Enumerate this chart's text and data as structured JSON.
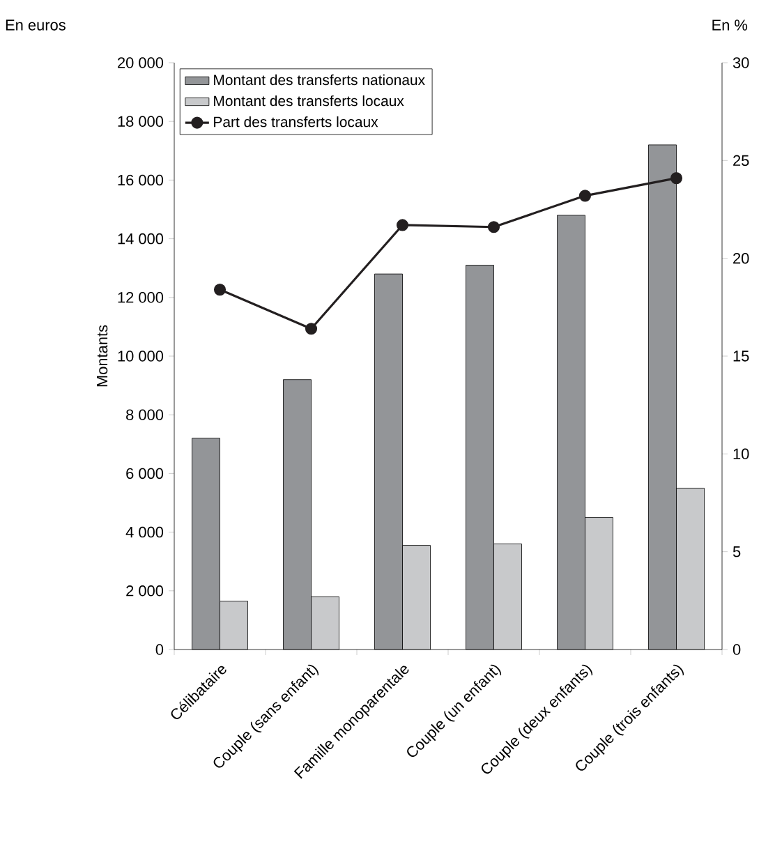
{
  "chart_data": {
    "type": "bar",
    "ylabel": "Montants",
    "annotations": [
      "En euros",
      "En %"
    ],
    "categories": [
      "Célibataire",
      "Couple (sans enfant)",
      "Famille monoparentale",
      "Couple (un enfant)",
      "Couple (deux enfants)",
      "Couple (trois enfants)"
    ],
    "series": [
      {
        "name": "Montant des transferts nationaux",
        "color": "#939598",
        "values": [
          7200,
          9200,
          12800,
          13100,
          14800,
          17200
        ]
      },
      {
        "name": "Montant des transferts locaux",
        "color": "#c8c9cb",
        "values": [
          1650,
          1800,
          3550,
          3600,
          4500,
          5500
        ]
      },
      {
        "name": "Part des transferts locaux",
        "type": "line",
        "axis": "y2",
        "color": "#231f20",
        "marker": "circle",
        "values": [
          18.4,
          16.4,
          21.7,
          21.6,
          23.2,
          24.1
        ]
      }
    ],
    "ylim": [
      0,
      20000
    ],
    "yticks": [
      0,
      {
        "value": 2000,
        "label": "2 000"
      },
      {
        "value": 4000,
        "label": "4 000"
      },
      {
        "value": 6000,
        "label": "6 000"
      },
      {
        "value": 8000,
        "label": "8 000"
      },
      {
        "value": 10000,
        "label": "10 000"
      },
      {
        "value": 12000,
        "label": "12 000"
      },
      {
        "value": 14000,
        "label": "14 000"
      },
      {
        "value": 16000,
        "label": "16 000"
      },
      {
        "value": 18000,
        "label": "18 000"
      },
      {
        "value": 20000,
        "label": "20 000"
      }
    ],
    "y2lim": [
      0,
      30
    ],
    "y2ticks": [
      0,
      5,
      10,
      15,
      20,
      25,
      30
    ],
    "grid": false,
    "legend": "top left"
  }
}
